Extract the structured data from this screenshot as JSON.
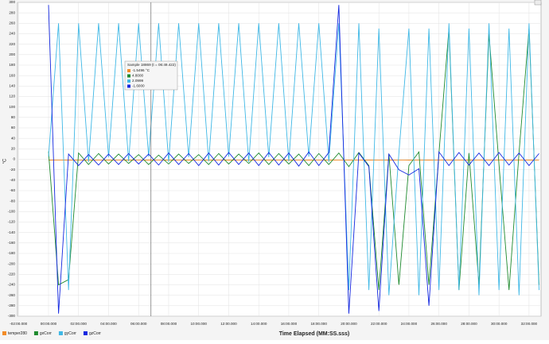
{
  "chart_data": {
    "type": "line",
    "y_label": "°C",
    "x_label": "Time Elapsed (MM:SS.sss)",
    "x": [
      0,
      40,
      80,
      120,
      160,
      200,
      240,
      280,
      320,
      360,
      400,
      440,
      480,
      520,
      560,
      600,
      640,
      680,
      720,
      760,
      800,
      840,
      880,
      920,
      960,
      1000,
      1040,
      1080,
      1120,
      1160,
      1200,
      1240,
      1280,
      1320,
      1360,
      1400,
      1440,
      1480,
      1520,
      1560,
      1600,
      1640,
      1680,
      1720,
      1760,
      1800,
      1840,
      1880,
      1920,
      1960
    ],
    "series": [
      {
        "name": "temper280",
        "color": "#f28c28",
        "values": [
          -1.5,
          -1.6,
          -1.5,
          -1.6,
          -1.5,
          -1.6,
          -1.5,
          -1.6,
          -1.5,
          -1.6,
          -1.5,
          -1.6,
          -1.5,
          -1.6,
          -1.5,
          -1.6,
          -1.5,
          -1.6,
          -1.5,
          -1.6,
          -1.5,
          -1.6,
          -1.5,
          -1.6,
          -1.5,
          -1.6,
          -1.5,
          -1.6,
          -1.5,
          -1.6,
          -1.5,
          -1.6,
          -1.5,
          -1.6,
          -1.5,
          -1.6,
          -1.5,
          -1.6,
          -1.5,
          -1.6,
          -1.5,
          -1.6,
          -1.5,
          -1.6,
          -1.5,
          -1.6,
          -1.5,
          -1.6,
          -1.5,
          -1.6
        ]
      },
      {
        "name": "gxCorr",
        "color": "#1e8a2e",
        "values": [
          15,
          -240,
          -230,
          12,
          -10,
          11,
          -9,
          10,
          -8,
          9,
          -10,
          8,
          -9,
          10,
          -8,
          9,
          -10,
          11,
          -9,
          10,
          -8,
          12,
          -10,
          11,
          -9,
          10,
          -12,
          11,
          -10,
          12,
          -14,
          13,
          -12,
          -250,
          10,
          -240,
          -12,
          14,
          -240,
          11,
          250,
          -250,
          12,
          -240,
          240,
          -10,
          -250,
          12,
          250,
          -240
        ]
      },
      {
        "name": "gyCorr",
        "color": "#3fb8e6",
        "values": [
          5,
          260,
          -250,
          260,
          -5,
          260,
          4,
          260,
          -4,
          260,
          5,
          260,
          -5,
          260,
          4,
          260,
          -4,
          260,
          5,
          260,
          -5,
          260,
          4,
          260,
          -4,
          260,
          5,
          260,
          -5,
          260,
          -250,
          260,
          -250,
          250,
          -260,
          12,
          250,
          -260,
          250,
          -250,
          260,
          -250,
          250,
          -260,
          260,
          -250,
          250,
          -260,
          260,
          -250
        ]
      },
      {
        "name": "gzCorr",
        "color": "#1428e0",
        "values": [
          295,
          -295,
          10,
          -12,
          9,
          -11,
          10,
          -10,
          11,
          -9,
          10,
          -11,
          12,
          -10,
          11,
          -12,
          12,
          -11,
          13,
          -10,
          12,
          -12,
          13,
          -11,
          12,
          -13,
          14,
          -12,
          13,
          295,
          -295,
          12,
          -14,
          -290,
          10,
          -20,
          -30,
          -18,
          -280,
          14,
          -12,
          13,
          -11,
          12,
          -12,
          13,
          -11,
          12,
          -12,
          11
        ]
      }
    ],
    "xlim": [
      -124,
      1968
    ],
    "ylim": [
      -300,
      300
    ],
    "xticks": [
      {
        "value": -120,
        "label": "-02:00.000"
      },
      {
        "value": 0,
        "label": "00:00.000"
      },
      {
        "value": 120,
        "label": "02:00.000"
      },
      {
        "value": 240,
        "label": "04:00.000"
      },
      {
        "value": 360,
        "label": "06:00.000"
      },
      {
        "value": 480,
        "label": "08:00.000"
      },
      {
        "value": 600,
        "label": "10:00.000"
      },
      {
        "value": 720,
        "label": "12:00.000"
      },
      {
        "value": 840,
        "label": "14:00.000"
      },
      {
        "value": 960,
        "label": "16:00.000"
      },
      {
        "value": 1080,
        "label": "18:00.000"
      },
      {
        "value": 1200,
        "label": "20:00.000"
      },
      {
        "value": 1320,
        "label": "22:00.000"
      },
      {
        "value": 1440,
        "label": "24:00.000"
      },
      {
        "value": 1560,
        "label": "26:00.000"
      },
      {
        "value": 1680,
        "label": "28:00.000"
      },
      {
        "value": 1800,
        "label": "30:00.000"
      },
      {
        "value": 1920,
        "label": "32:00.000"
      }
    ],
    "yticks": [
      -300,
      -280,
      -260,
      -240,
      -220,
      -200,
      -180,
      -160,
      -140,
      -120,
      -100,
      -80,
      -60,
      -40,
      -20,
      0,
      20,
      40,
      60,
      80,
      100,
      120,
      140,
      160,
      180,
      200,
      220,
      240,
      260,
      280,
      300
    ],
    "grid": true,
    "cursor": {
      "x": 409.422
    },
    "tooltip": {
      "title": "Sample 18869 (t = 06:49.422)",
      "lines": [
        "-1.5496 °C",
        "4.8000",
        "2.0999",
        "-1.6000"
      ]
    }
  }
}
